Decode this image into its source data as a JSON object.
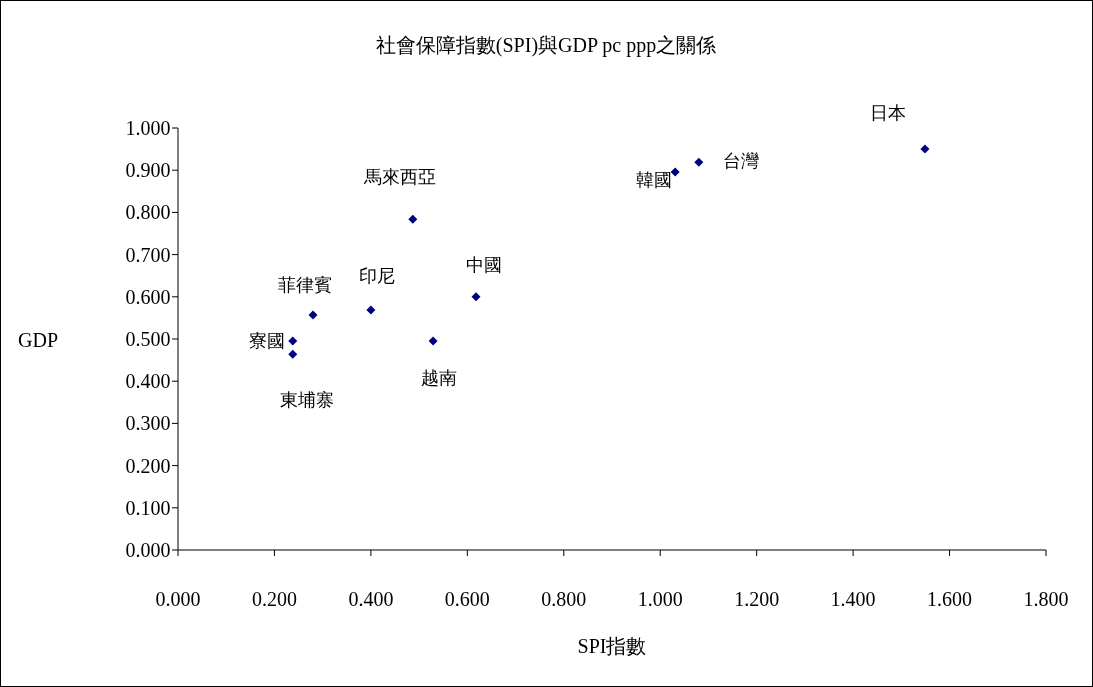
{
  "chart_data": {
    "type": "scatter",
    "title": "社會保障指數(SPI)與GDP pc ppp之關係",
    "xlabel": "SPI指數",
    "ylabel": "GDP",
    "marker": "diamond",
    "grid": false,
    "series": [
      {
        "color": "#000080",
        "x": [
          0.238,
          0.238,
          0.28,
          0.4,
          0.487,
          0.529,
          0.618,
          1.031,
          1.08,
          1.549
        ],
        "values": [
          0.495,
          0.464,
          0.557,
          0.569,
          0.784,
          0.495,
          0.6,
          0.896,
          0.919,
          0.95
        ]
      }
    ],
    "xlim": [
      0,
      1.8
    ],
    "ylim": [
      0,
      1
    ],
    "xticks": [
      {
        "value": 0,
        "label": "0.000"
      },
      {
        "value": 0.2,
        "label": "0.200"
      },
      {
        "value": 0.4,
        "label": "0.400"
      },
      {
        "value": 0.6,
        "label": "0.600"
      },
      {
        "value": 0.8,
        "label": "0.800"
      },
      {
        "value": 1,
        "label": "1.000"
      },
      {
        "value": 1.2,
        "label": "1.200"
      },
      {
        "value": 1.4,
        "label": "1.400"
      },
      {
        "value": 1.6,
        "label": "1.600"
      },
      {
        "value": 1.8,
        "label": "1.800"
      }
    ],
    "yticks": [
      {
        "value": 0,
        "label": "0.000"
      },
      {
        "value": 0.1,
        "label": "0.100"
      },
      {
        "value": 0.2,
        "label": "0.200"
      },
      {
        "value": 0.3,
        "label": "0.300"
      },
      {
        "value": 0.4,
        "label": "0.400"
      },
      {
        "value": 0.5,
        "label": "0.500"
      },
      {
        "value": 0.6,
        "label": "0.600"
      },
      {
        "value": 0.7,
        "label": "0.700"
      },
      {
        "value": 0.8,
        "label": "0.800"
      },
      {
        "value": 0.9,
        "label": "0.900"
      },
      {
        "value": 1,
        "label": "1.000"
      }
    ],
    "annotations": [
      {
        "text": "寮國",
        "x": 0.238,
        "y": 0.495
      },
      {
        "text": "東埔寨",
        "x": 0.238,
        "y": 0.464
      },
      {
        "text": "菲律賓",
        "x": 0.28,
        "y": 0.557
      },
      {
        "text": "印尼",
        "x": 0.4,
        "y": 0.569
      },
      {
        "text": "馬來西亞",
        "x": 0.487,
        "y": 0.784
      },
      {
        "text": "越南",
        "x": 0.529,
        "y": 0.495
      },
      {
        "text": "中國",
        "x": 0.618,
        "y": 0.6
      },
      {
        "text": "韓國",
        "x": 1.031,
        "y": 0.896
      },
      {
        "text": "台灣",
        "x": 1.08,
        "y": 0.919
      },
      {
        "text": "日本",
        "x": 1.549,
        "y": 0.95
      }
    ]
  }
}
